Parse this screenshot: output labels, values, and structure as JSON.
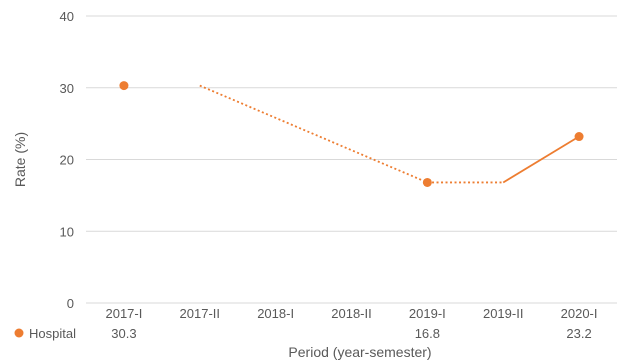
{
  "chart_data": {
    "type": "line",
    "xlabel": "Period (year-semester)",
    "ylabel": "Rate (%)",
    "ylim": [
      0,
      40
    ],
    "yticks": [
      0,
      10,
      20,
      30,
      40
    ],
    "grid": true,
    "categories": [
      "2017-I",
      "2017-II",
      "2018-I",
      "2018-II",
      "2019-I",
      "2019-II",
      "2020-I"
    ],
    "series": [
      {
        "name": "Hospital",
        "color": "#ED7D31",
        "values": [
          30.3,
          null,
          null,
          null,
          16.8,
          null,
          23.2
        ],
        "data_labels": [
          "30.3",
          "",
          "",
          "",
          "16.8",
          "",
          "23.2"
        ]
      }
    ],
    "dotted_segment": [
      {
        "x": "2017-II",
        "y": 30.3
      },
      {
        "x": "2019-I",
        "y": 16.8
      },
      {
        "x": "2019-II",
        "y": 16.8
      }
    ],
    "solid_segment": [
      {
        "x": "2019-II",
        "y": 16.8
      },
      {
        "x": "2020-I",
        "y": 23.2
      }
    ]
  }
}
